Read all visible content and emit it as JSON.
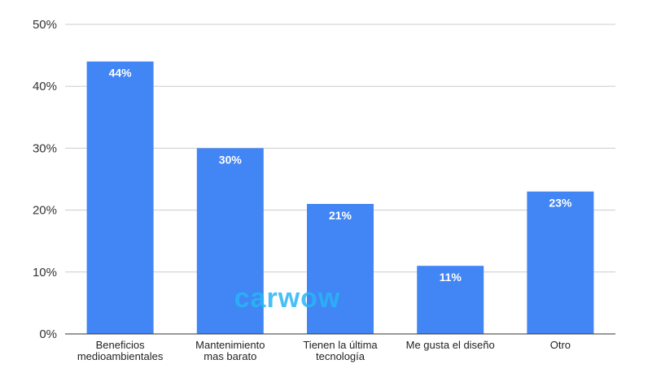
{
  "chart_data": {
    "type": "bar",
    "categories": [
      [
        "Beneficios",
        "medioambientales"
      ],
      [
        "Mantenimiento",
        "mas barato"
      ],
      [
        "Tienen la última",
        "tecnología"
      ],
      [
        "Me gusta el diseño"
      ],
      [
        "Otro"
      ]
    ],
    "values": [
      44,
      30,
      21,
      11,
      23
    ],
    "data_labels": [
      "44%",
      "30%",
      "21%",
      "11%",
      "23%"
    ],
    "y_ticks": [
      0,
      10,
      20,
      30,
      40,
      50
    ],
    "y_tick_labels": [
      "0%",
      "10%",
      "20%",
      "30%",
      "40%",
      "50%"
    ],
    "ylim": [
      0,
      50
    ],
    "grid": true,
    "bar_color": "#4285f4",
    "watermark": "carwow",
    "watermark_color": "#29b6f6"
  }
}
